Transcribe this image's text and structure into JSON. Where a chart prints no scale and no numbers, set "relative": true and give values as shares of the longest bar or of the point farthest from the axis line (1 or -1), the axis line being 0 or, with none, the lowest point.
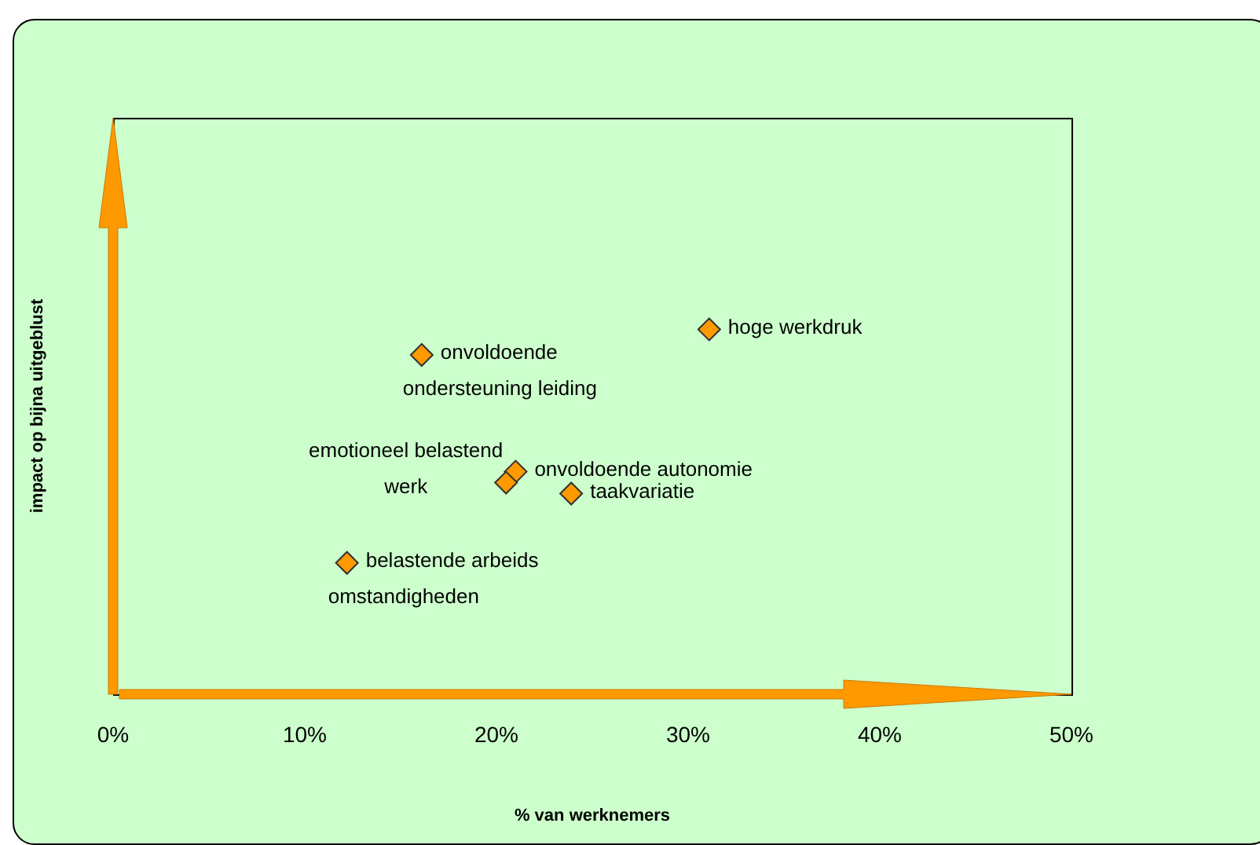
{
  "chart_data": {
    "type": "scatter",
    "xlabel": "% van werknemers",
    "ylabel": "impact op bijna uitgeblust",
    "relative": true,
    "x": [
      31.1,
      16.1,
      21.0,
      20.5,
      23.9,
      12.2
    ],
    "values": [
      1,
      0.93,
      0.61,
      0.58,
      0.55,
      0.36
    ],
    "color": "#ff9900",
    "marker": "diamond",
    "grid": false,
    "legend": false,
    "xlim": [
      0,
      50
    ],
    "xticks": [
      {
        "value": 0,
        "label": "0%"
      },
      {
        "value": 10,
        "label": "10%"
      },
      {
        "value": 20,
        "label": "20%"
      },
      {
        "value": 30,
        "label": "30%"
      },
      {
        "value": 40,
        "label": "40%"
      },
      {
        "value": 50,
        "label": "50%"
      }
    ],
    "annotations": [
      {
        "text": "hoge werkdruk",
        "x": 31.1,
        "y": 1
      },
      {
        "text": "onvoldoende\nondersteuning leiding",
        "x": 16.1,
        "y": 0.93
      },
      {
        "text": "onvoldoende autonomie",
        "x": 21.0,
        "y": 0.61
      },
      {
        "text": "emotioneel belastend\nwerk",
        "x": 20.5,
        "y": 0.58
      },
      {
        "text": "taakvariatie",
        "x": 23.9,
        "y": 0.55
      },
      {
        "text": "belastende arbeids\nomstandigheden",
        "x": 12.2,
        "y": 0.36
      }
    ]
  }
}
